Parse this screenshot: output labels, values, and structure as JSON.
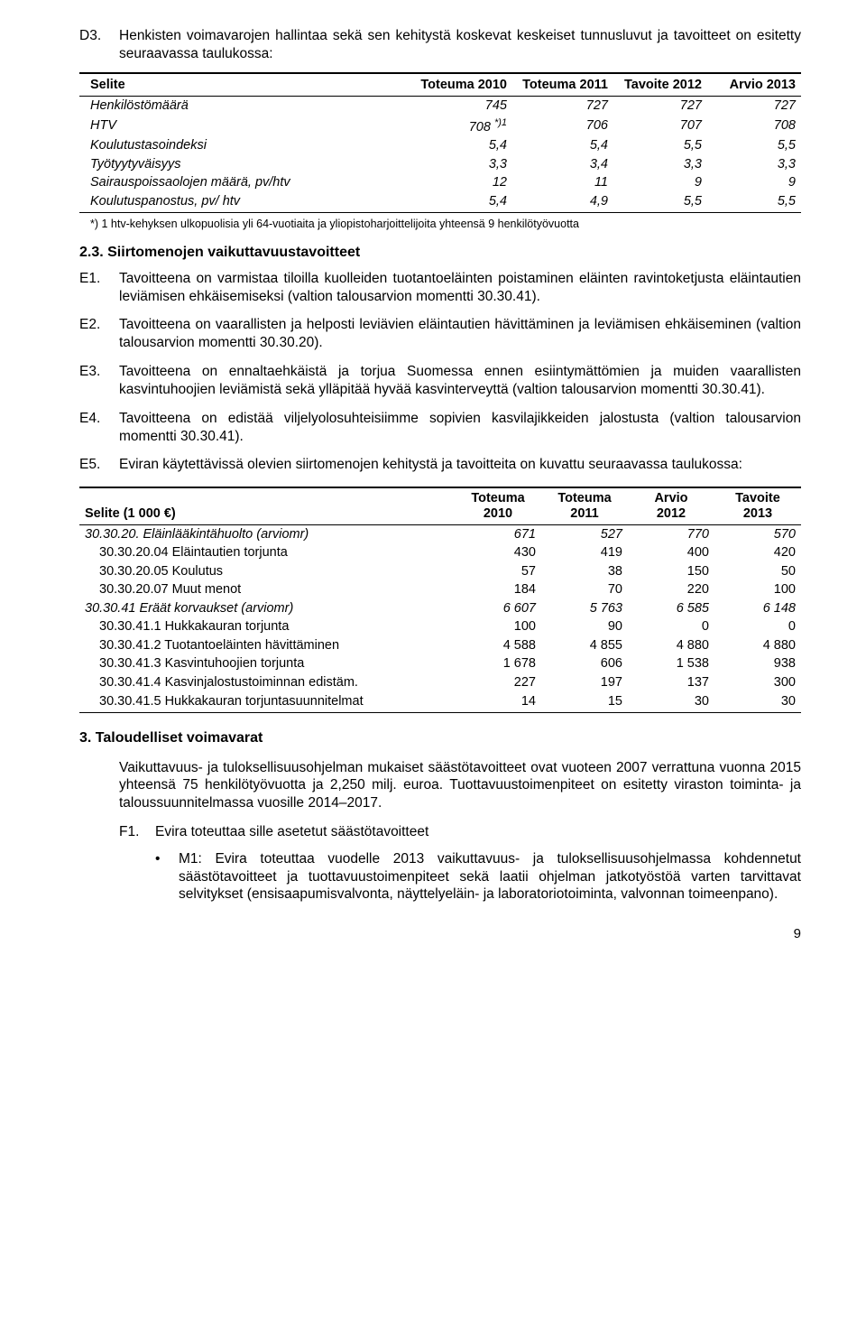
{
  "d3": {
    "label": "D3.",
    "text": "Henkisten voimavarojen hallintaa sekä sen kehitystä koskevat keskeiset tunnusluvut ja tavoitteet on esitetty seuraavassa taulukossa:"
  },
  "table1": {
    "headers": [
      "Selite",
      "Toteuma 2010",
      "Toteuma 2011",
      "Tavoite 2012",
      "Arvio 2013"
    ],
    "rows": [
      {
        "label": "Henkilöstömäärä",
        "v": [
          "745",
          "727",
          "727",
          "727"
        ]
      },
      {
        "label": "HTV",
        "sup": "*)1",
        "v": [
          "708",
          "706",
          "707",
          "708"
        ]
      },
      {
        "label": "Koulutustasoindeksi",
        "v": [
          "5,4",
          "5,4",
          "5,5",
          "5,5"
        ]
      },
      {
        "label": "Työtyytyväisyys",
        "v": [
          "3,3",
          "3,4",
          "3,3",
          "3,3"
        ]
      },
      {
        "label": "Sairauspoissaolojen määrä, pv/htv",
        "v": [
          "12",
          "11",
          "9",
          "9"
        ]
      },
      {
        "label": "Koulutuspanostus, pv/ htv",
        "v": [
          "5,4",
          "4,9",
          "5,5",
          "5,5"
        ]
      }
    ],
    "footnote": "*) 1 htv-kehyksen ulkopuolisia yli 64-vuotiaita ja yliopistoharjoittelijoita yhteensä 9 henkilötyövuotta"
  },
  "h23": "2.3. Siirtomenojen vaikuttavuustavoitteet",
  "e_items": [
    {
      "label": "E1.",
      "text": "Tavoitteena on varmistaa tiloilla kuolleiden tuotantoeläinten poistaminen eläinten ravintoketjusta eläintautien leviämisen ehkäisemiseksi (valtion talousarvion momentti 30.30.41)."
    },
    {
      "label": "E2.",
      "text": "Tavoitteena on vaarallisten ja helposti leviävien eläintautien hävittäminen ja leviämisen ehkäiseminen (valtion talousarvion momentti 30.30.20)."
    },
    {
      "label": "E3.",
      "text": "Tavoitteena on ennaltaehkäistä ja torjua Suomessa ennen esiintymättömien ja muiden vaarallisten kasvintuhoojien leviämistä sekä ylläpitää hyvää kasvinterveyttä (valtion talousarvion momentti 30.30.41)."
    },
    {
      "label": "E4.",
      "text": "Tavoitteena on edistää viljelyolosuhteisiimme sopivien kasvilajikkeiden jalostusta (valtion talousarvion momentti 30.30.41)."
    },
    {
      "label": "E5.",
      "text": "Eviran käytettävissä olevien siirtomenojen kehitystä ja tavoitteita on kuvattu seuraavassa taulukossa:"
    }
  ],
  "table2": {
    "headers": [
      {
        "l1": "",
        "l2": "Selite (1 000 €)"
      },
      {
        "l1": "Toteuma",
        "l2": "2010"
      },
      {
        "l1": "Toteuma",
        "l2": "2011"
      },
      {
        "l1": "Arvio",
        "l2": "2012"
      },
      {
        "l1": "Tavoite",
        "l2": "2013"
      }
    ],
    "rows": [
      {
        "cls": "grp",
        "label": "30.30.20. Eläinlääkintähuolto (arviomr)",
        "v": [
          "671",
          "527",
          "770",
          "570"
        ]
      },
      {
        "cls": "sub",
        "label": "30.30.20.04 Eläintautien torjunta",
        "v": [
          "430",
          "419",
          "400",
          "420"
        ]
      },
      {
        "cls": "sub",
        "label": "30.30.20.05 Koulutus",
        "v": [
          "57",
          "38",
          "150",
          "50"
        ]
      },
      {
        "cls": "sub",
        "label": "30.30.20.07 Muut menot",
        "v": [
          "184",
          "70",
          "220",
          "100"
        ]
      },
      {
        "cls": "grp",
        "label": "30.30.41 Eräät korvaukset (arviomr)",
        "v": [
          "6 607",
          "5 763",
          "6 585",
          "6 148"
        ]
      },
      {
        "cls": "sub",
        "label": "30.30.41.1 Hukkakauran torjunta",
        "v": [
          "100",
          "90",
          "0",
          "0"
        ]
      },
      {
        "cls": "sub",
        "label": "30.30.41.2 Tuotantoeläinten hävittäminen",
        "v": [
          "4 588",
          "4 855",
          "4 880",
          "4 880"
        ]
      },
      {
        "cls": "sub",
        "label": "30.30.41.3 Kasvintuhoojien torjunta",
        "v": [
          "1 678",
          "606",
          "1 538",
          "938"
        ]
      },
      {
        "cls": "sub",
        "label": "30.30.41.4 Kasvinjalostustoiminnan edistäm.",
        "v": [
          "227",
          "197",
          "137",
          "300"
        ]
      },
      {
        "cls": "sub",
        "label": "30.30.41.5 Hukkakauran torjuntasuunnitelmat",
        "v": [
          "14",
          "15",
          "30",
          "30"
        ]
      }
    ]
  },
  "h3": "3. Taloudelliset voimavarat",
  "para3": "Vaikuttavuus- ja tuloksellisuusohjelman mukaiset säästötavoitteet ovat vuoteen 2007 verrattuna vuonna 2015 yhteensä 75 henkilötyövuotta ja 2,250 milj. euroa. Tuottavuustoimenpiteet on esitetty viraston toiminta- ja taloussuunnitelmassa vuosille 2014–2017.",
  "f1": {
    "label": "F1.",
    "text": "Evira toteuttaa sille asetetut säästötavoitteet"
  },
  "bullet": "M1: Evira toteuttaa vuodelle 2013 vaikuttavuus- ja tuloksellisuusohjelmassa kohdennetut säästötavoitteet ja tuottavuustoimenpiteet sekä laatii ohjelman jatkotyöstöä varten tarvittavat selvitykset (ensisaapumisvalvonta, näyttelyeläin- ja laboratoriotoiminta, valvonnan toimeenpano).",
  "pagenum": "9"
}
